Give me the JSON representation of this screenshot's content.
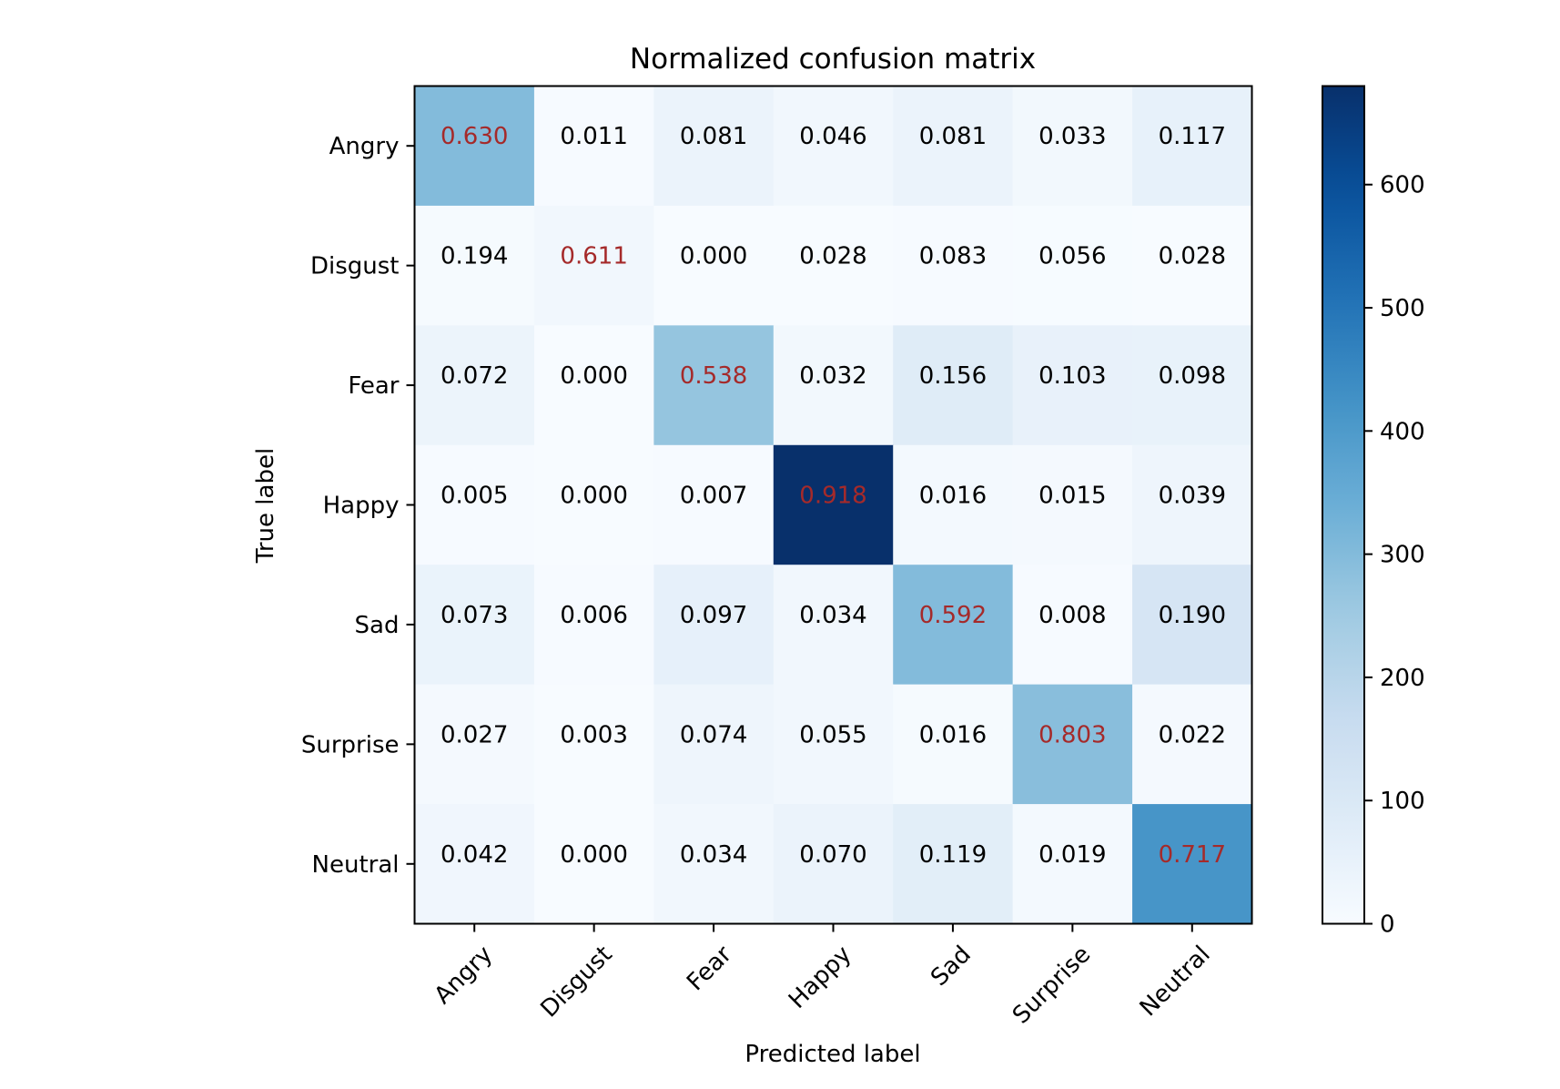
{
  "chart_data": {
    "type": "heatmap",
    "title": "Normalized confusion matrix",
    "xlabel": "Predicted label",
    "ylabel": "True label",
    "x_categories": [
      "Angry",
      "Disgust",
      "Fear",
      "Happy",
      "Sad",
      "Surprise",
      "Neutral"
    ],
    "y_categories": [
      "Angry",
      "Disgust",
      "Fear",
      "Happy",
      "Sad",
      "Surprise",
      "Neutral"
    ],
    "cell_labels": [
      [
        "0.630",
        "0.011",
        "0.081",
        "0.046",
        "0.081",
        "0.033",
        "0.117"
      ],
      [
        "0.194",
        "0.611",
        "0.000",
        "0.028",
        "0.083",
        "0.056",
        "0.028"
      ],
      [
        "0.072",
        "0.000",
        "0.538",
        "0.032",
        "0.156",
        "0.103",
        "0.098"
      ],
      [
        "0.005",
        "0.000",
        "0.007",
        "0.918",
        "0.016",
        "0.015",
        "0.039"
      ],
      [
        "0.073",
        "0.006",
        "0.097",
        "0.034",
        "0.592",
        "0.008",
        "0.190"
      ],
      [
        "0.027",
        "0.003",
        "0.074",
        "0.055",
        "0.016",
        "0.803",
        "0.022"
      ],
      [
        "0.042",
        "0.000",
        "0.034",
        "0.070",
        "0.119",
        "0.019",
        "0.717"
      ]
    ],
    "color_values": [
      [
        300,
        5,
        40,
        22,
        40,
        16,
        55
      ],
      [
        7,
        20,
        0,
        1,
        3,
        2,
        1
      ],
      [
        38,
        0,
        270,
        16,
        80,
        52,
        50
      ],
      [
        3,
        0,
        5,
        680,
        12,
        11,
        30
      ],
      [
        45,
        4,
        58,
        20,
        300,
        5,
        115
      ],
      [
        10,
        1,
        30,
        22,
        7,
        290,
        9
      ],
      [
        25,
        0,
        20,
        42,
        70,
        12,
        415
      ]
    ],
    "colorbar": {
      "vmin": 0,
      "vmax": 680,
      "ticks": [
        0,
        100,
        200,
        300,
        400,
        500,
        600
      ],
      "colormap": "Blues"
    },
    "colors": {
      "diagonal_text": "#a52a2a",
      "cell_text": "#000000"
    },
    "grid": false
  }
}
